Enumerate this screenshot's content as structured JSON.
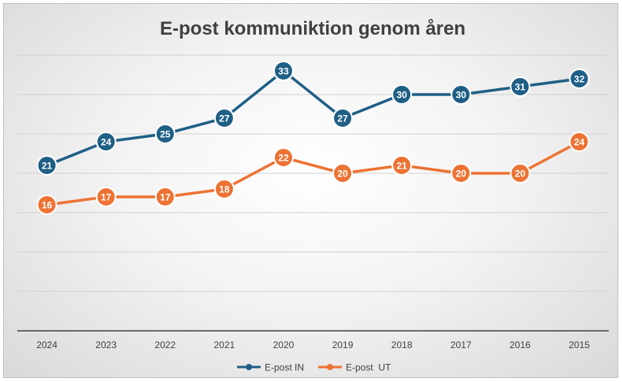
{
  "chart_data": {
    "type": "line",
    "title": "E-post kommuniktion genom åren",
    "categories": [
      "2024",
      "2023",
      "2022",
      "2021",
      "2020",
      "2019",
      "2018",
      "2017",
      "2016",
      "2015"
    ],
    "series": [
      {
        "name": "E-post IN",
        "color": "#1f5f86",
        "values": [
          21,
          24,
          25,
          27,
          33,
          27,
          30,
          30,
          31,
          32
        ]
      },
      {
        "name": "E-post  UT",
        "color": "#ed7233",
        "values": [
          16,
          17,
          17,
          18,
          22,
          20,
          21,
          20,
          20,
          24
        ]
      }
    ],
    "ylim": [
      0,
      35
    ],
    "y_axis_labels_visible": false,
    "grid": true,
    "data_labels": true,
    "legend": "bottom"
  }
}
